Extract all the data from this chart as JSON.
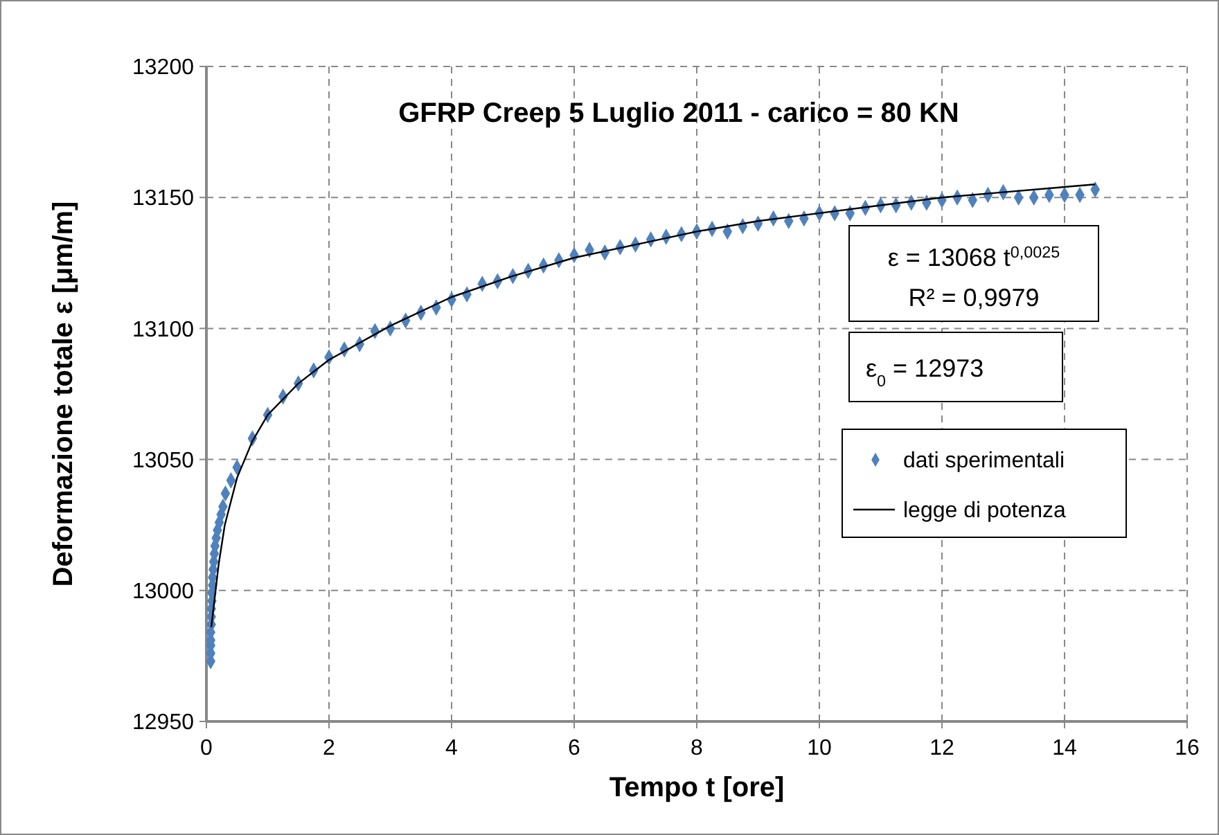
{
  "chart_data": {
    "type": "scatter",
    "title": "GFRP Creep 5 Luglio 2011 - carico = 80 KN",
    "xlabel": "Tempo t [ore]",
    "ylabel": "Deformazione totale  ε [μm/m]",
    "xlim": [
      0,
      16
    ],
    "xticks": [
      0,
      2,
      4,
      6,
      8,
      10,
      12,
      14,
      16
    ],
    "ylim": [
      12950,
      13200
    ],
    "yticks": [
      12950,
      13000,
      13050,
      13100,
      13150,
      13200
    ],
    "grid": true,
    "legend": "right",
    "annotations": [
      "ε = 13068 t$^{0,0025}$",
      "R² = 0,9979",
      "ε$_{0}$ = 12973"
    ],
    "series": [
      {
        "name": "dati sperimentali",
        "marker": "diamond",
        "color": "#4f81bd",
        "x": [
          0.07,
          0.07,
          0.07,
          0.07,
          0.07,
          0.08,
          0.08,
          0.08,
          0.09,
          0.09,
          0.1,
          0.1,
          0.11,
          0.12,
          0.13,
          0.14,
          0.16,
          0.18,
          0.21,
          0.24,
          0.27,
          0.31,
          0.4,
          0.5,
          0.75,
          1,
          1.25,
          1.5,
          1.75,
          2,
          2.25,
          2.5,
          2.75,
          3,
          3.25,
          3.5,
          3.75,
          4,
          4.25,
          4.5,
          4.75,
          5,
          5.25,
          5.5,
          5.75,
          6,
          6.25,
          6.5,
          6.75,
          7,
          7.25,
          7.5,
          7.75,
          8,
          8.25,
          8.5,
          8.75,
          9,
          9.25,
          9.5,
          9.75,
          10,
          10.25,
          10.5,
          10.75,
          11,
          11.25,
          11.5,
          11.75,
          12,
          12.25,
          12.5,
          12.75,
          13,
          13.25,
          13.5,
          13.75,
          14,
          14.25,
          14.5
        ],
        "values": [
          12973,
          12976,
          12979,
          12981,
          12984,
          12987,
          12990,
          12993,
          12996,
          12999,
          13002,
          13005,
          13008,
          13011,
          13014,
          13017,
          13020,
          13023,
          13026,
          13029,
          13032,
          13037,
          13042,
          13047,
          13058,
          13067,
          13074,
          13079,
          13084,
          13089,
          13092,
          13094,
          13099,
          13100,
          13103,
          13106,
          13108,
          13111,
          13113,
          13117,
          13118,
          13120,
          13122,
          13124,
          13126,
          13128,
          13130,
          13129,
          13131,
          13132,
          13134,
          13135,
          13136,
          13137,
          13138,
          13137,
          13139,
          13140,
          13142,
          13141,
          13142,
          13144,
          13144,
          13144,
          13146,
          13147,
          13147,
          13148,
          13148,
          13149,
          13150,
          13149,
          13151,
          13152,
          13150,
          13150,
          13151,
          13151,
          13151,
          13153
        ]
      },
      {
        "name": "legge di potenza",
        "type": "line",
        "color": "#000000",
        "x": [
          0.08,
          0.2,
          0.3,
          0.5,
          0.75,
          1,
          1.5,
          2,
          3,
          4,
          5,
          6,
          7,
          8,
          9,
          10,
          11,
          12,
          13,
          14,
          14.5
        ],
        "values": [
          12986,
          13010,
          13025,
          13043,
          13057,
          13067,
          13079,
          13088,
          13101,
          13112,
          13120,
          13127,
          13132,
          13137,
          13141,
          13144,
          13147,
          13150,
          13152,
          13154,
          13155
        ]
      }
    ]
  }
}
